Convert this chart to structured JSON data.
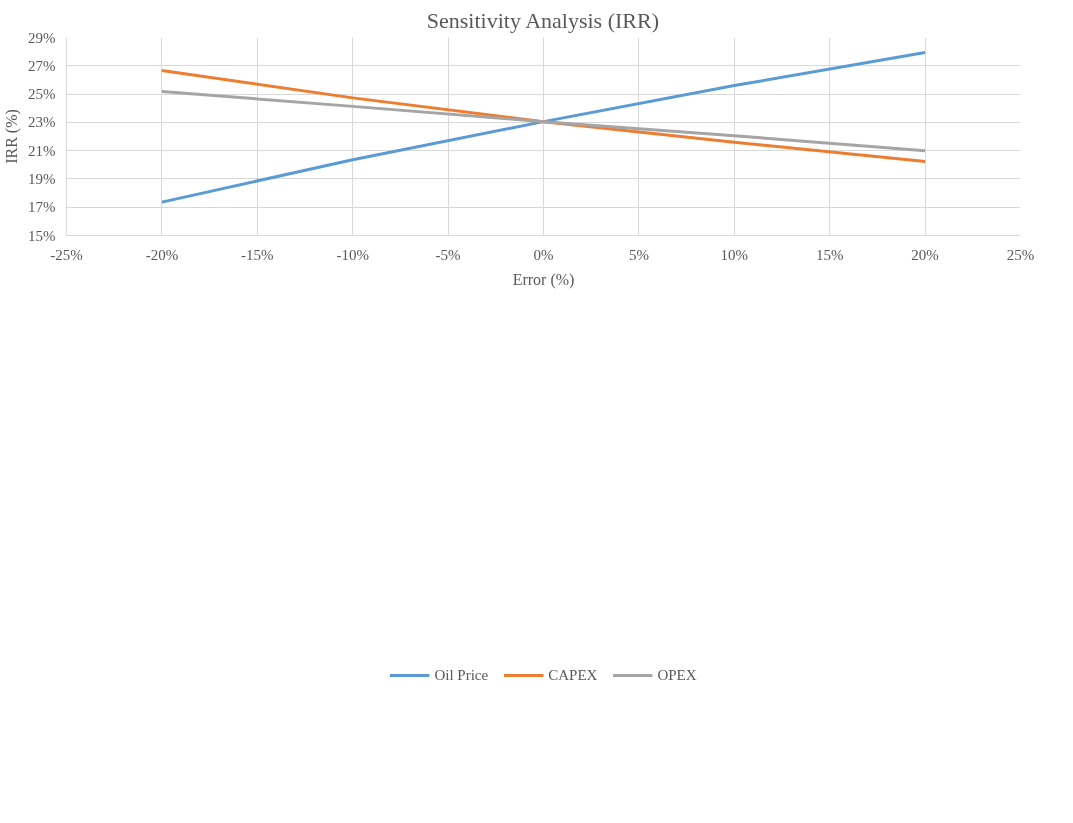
{
  "chart_data": {
    "type": "line",
    "title": "Sensitivity Analysis (IRR)",
    "xlabel": "Error (%)",
    "ylabel": "IRR (%)",
    "x": [
      -20,
      -10,
      0,
      10,
      20
    ],
    "series": [
      {
        "name": "Oil Price",
        "color": "#5b9bd5",
        "values": [
          17.36,
          20.36,
          23.05,
          25.6,
          27.94
        ]
      },
      {
        "name": "CAPEX",
        "color": "#ed7d31",
        "values": [
          26.66,
          24.73,
          23.05,
          21.6,
          20.24
        ]
      },
      {
        "name": "OPEX",
        "color": "#a5a5a5",
        "values": [
          25.18,
          24.13,
          23.05,
          22.05,
          21.0
        ]
      }
    ],
    "xlim": [
      -25,
      25
    ],
    "xticks": [
      {
        "value": -25,
        "label": "-25%"
      },
      {
        "value": -20,
        "label": "-20%"
      },
      {
        "value": -15,
        "label": "-15%"
      },
      {
        "value": -10,
        "label": "-10%"
      },
      {
        "value": -5,
        "label": "-5%"
      },
      {
        "value": 0,
        "label": "0%"
      },
      {
        "value": 5,
        "label": "5%"
      },
      {
        "value": 10,
        "label": "10%"
      },
      {
        "value": 15,
        "label": "15%"
      },
      {
        "value": 20,
        "label": "20%"
      },
      {
        "value": 25,
        "label": "25%"
      }
    ],
    "ylim": [
      15,
      29
    ],
    "yticks": [
      {
        "value": 15,
        "label": "15%"
      },
      {
        "value": 17,
        "label": "17%"
      },
      {
        "value": 19,
        "label": "19%"
      },
      {
        "value": 21,
        "label": "21%"
      },
      {
        "value": 23,
        "label": "23%"
      },
      {
        "value": 25,
        "label": "25%"
      },
      {
        "value": 27,
        "label": "27%"
      },
      {
        "value": 29,
        "label": "29%"
      }
    ],
    "grid": true,
    "legend": "bottom",
    "marker": "none",
    "line_style": "solid"
  }
}
